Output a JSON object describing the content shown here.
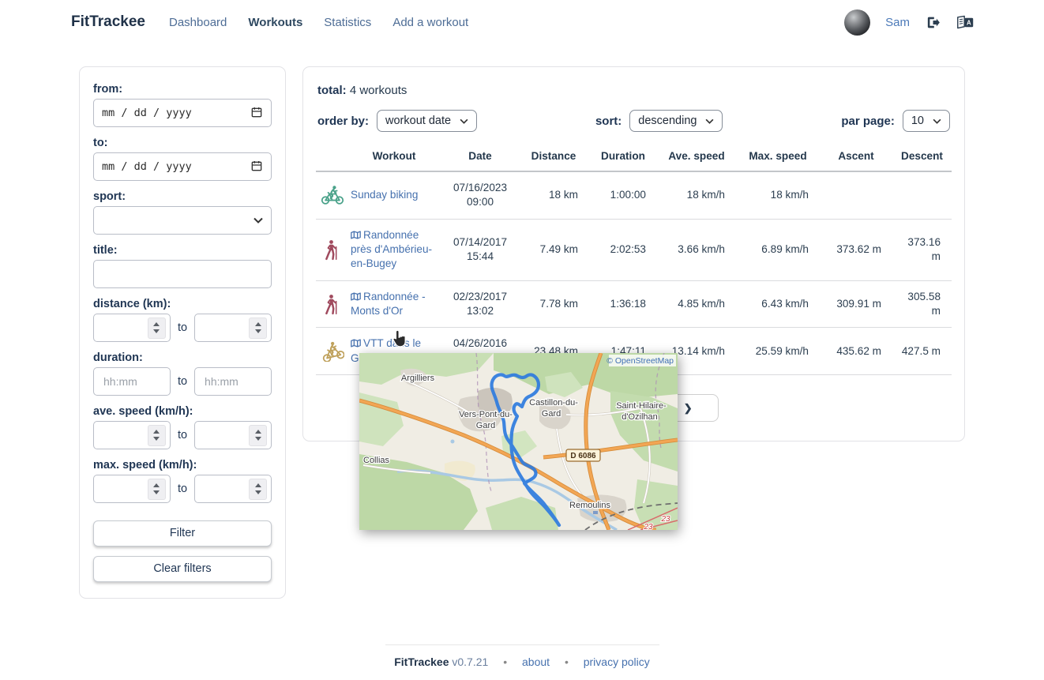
{
  "nav": {
    "brand": "FitTrackee",
    "items": [
      {
        "label": "Dashboard",
        "active": false
      },
      {
        "label": "Workouts",
        "active": true
      },
      {
        "label": "Statistics",
        "active": false
      },
      {
        "label": "Add a workout",
        "active": false
      }
    ],
    "username": "Sam"
  },
  "filters": {
    "from_label": "from:",
    "to_label": "to:",
    "date_placeholder": "mm / dd / yyyy",
    "sport_label": "sport:",
    "title_label": "title:",
    "distance_label": "distance (km):",
    "duration_label": "duration:",
    "duration_placeholder": "hh:mm",
    "ave_speed_label": "ave. speed (km/h):",
    "max_speed_label": "max. speed (km/h):",
    "range_separator": "to",
    "filter_button": "Filter",
    "clear_button": "Clear filters"
  },
  "workouts": {
    "total_label": "total:",
    "total_value": "4 workouts",
    "order_by_label": "order by:",
    "order_by_value": "workout date",
    "sort_label": "sort:",
    "sort_value": "descending",
    "per_page_label": "par page:",
    "per_page_value": "10",
    "columns": [
      "Workout",
      "Date",
      "Distance",
      "Duration",
      "Ave. speed",
      "Max. speed",
      "Ascent",
      "Descent"
    ],
    "rows": [
      {
        "sport": "cycling",
        "has_gpx": false,
        "title": "Sunday biking",
        "date": "07/16/2023 09:00",
        "distance": "18 km",
        "duration": "1:00:00",
        "ave_speed": "18 km/h",
        "max_speed": "18 km/h",
        "ascent": "",
        "descent": ""
      },
      {
        "sport": "hiking",
        "has_gpx": true,
        "title": "Randonnée près d'Ambérieu-en-Bugey",
        "date": "07/14/2017 15:44",
        "distance": "7.49 km",
        "duration": "2:02:53",
        "ave_speed": "3.66 km/h",
        "max_speed": "6.89 km/h",
        "ascent": "373.62 m",
        "descent": "373.16 m"
      },
      {
        "sport": "hiking",
        "has_gpx": true,
        "title": "Randonnée - Monts d'Or",
        "date": "02/23/2017 13:02",
        "distance": "7.78 km",
        "duration": "1:36:18",
        "ave_speed": "4.85 km/h",
        "max_speed": "6.43 km/h",
        "ascent": "309.91 m",
        "descent": "305.58 m"
      },
      {
        "sport": "mountain-biking",
        "has_gpx": true,
        "title": "VTT dans le Gard",
        "date": "04/26/2016 16:42",
        "distance": "23.48 km",
        "duration": "1:47:11",
        "ave_speed": "13.14 km/h",
        "max_speed": "25.59 km/h",
        "ascent": "435.62 m",
        "descent": "427.5 m"
      }
    ],
    "pagination_next": "next"
  },
  "map_popup": {
    "attribution": "© OpenStreetMap",
    "road_badge": "D 6086",
    "route_refs": [
      "23",
      "23"
    ],
    "towns": {
      "argilliers": "Argilliers",
      "vers_pont_1": "Vers-Pont-du-",
      "vers_pont_2": "Gard",
      "castillon_1": "Castillon-du-",
      "castillon_2": "Gard",
      "saint_hilaire_1": "Saint-Hilaire-",
      "saint_hilaire_2": "d'Ozilhan",
      "collias": "Collias",
      "remoulins": "Remoulins"
    }
  },
  "footer": {
    "brand": "FitTrackee",
    "version": "v0.7.21",
    "separator": "•",
    "links": [
      "about",
      "privacy policy"
    ]
  },
  "colors": {
    "cycling": "#4aa28a",
    "hiking": "#a04a5e",
    "mountain-biking": "#bfa15c",
    "link": "#4671ae",
    "route": "#2e7bde",
    "text": "#2c3e50"
  }
}
